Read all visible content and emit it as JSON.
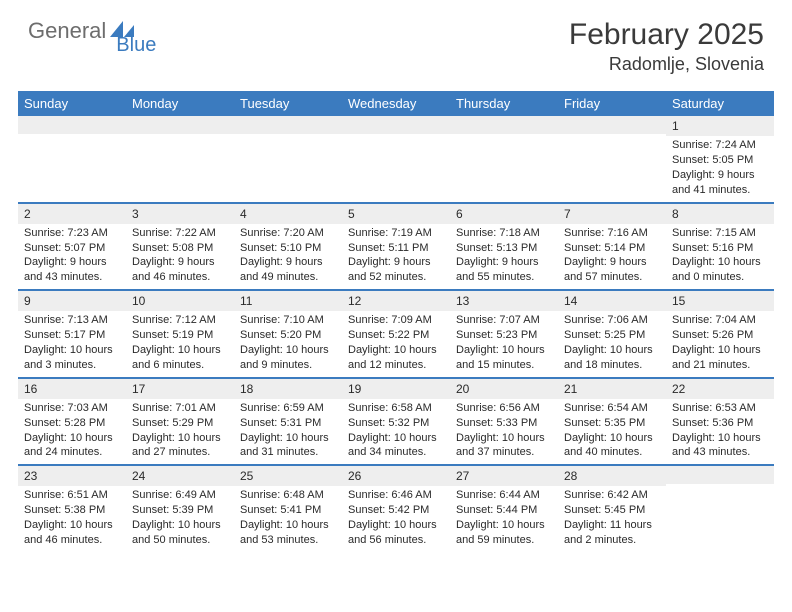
{
  "logo": {
    "part1": "General",
    "part2": "Blue"
  },
  "title": "February 2025",
  "location": "Radomlje, Slovenia",
  "colors": {
    "header_bg": "#3b7bbf",
    "header_text": "#ffffff",
    "num_row_bg": "#eeeeee",
    "text": "#2a2a2a",
    "logo_gray": "#6d6d6d",
    "logo_blue": "#3b7bbf",
    "rule": "#3b7bbf"
  },
  "day_names": [
    "Sunday",
    "Monday",
    "Tuesday",
    "Wednesday",
    "Thursday",
    "Friday",
    "Saturday"
  ],
  "weeks": [
    [
      null,
      null,
      null,
      null,
      null,
      null,
      {
        "n": "1",
        "sr": "7:24 AM",
        "ss": "5:05 PM",
        "dl": "9 hours and 41 minutes."
      }
    ],
    [
      {
        "n": "2",
        "sr": "7:23 AM",
        "ss": "5:07 PM",
        "dl": "9 hours and 43 minutes."
      },
      {
        "n": "3",
        "sr": "7:22 AM",
        "ss": "5:08 PM",
        "dl": "9 hours and 46 minutes."
      },
      {
        "n": "4",
        "sr": "7:20 AM",
        "ss": "5:10 PM",
        "dl": "9 hours and 49 minutes."
      },
      {
        "n": "5",
        "sr": "7:19 AM",
        "ss": "5:11 PM",
        "dl": "9 hours and 52 minutes."
      },
      {
        "n": "6",
        "sr": "7:18 AM",
        "ss": "5:13 PM",
        "dl": "9 hours and 55 minutes."
      },
      {
        "n": "7",
        "sr": "7:16 AM",
        "ss": "5:14 PM",
        "dl": "9 hours and 57 minutes."
      },
      {
        "n": "8",
        "sr": "7:15 AM",
        "ss": "5:16 PM",
        "dl": "10 hours and 0 minutes."
      }
    ],
    [
      {
        "n": "9",
        "sr": "7:13 AM",
        "ss": "5:17 PM",
        "dl": "10 hours and 3 minutes."
      },
      {
        "n": "10",
        "sr": "7:12 AM",
        "ss": "5:19 PM",
        "dl": "10 hours and 6 minutes."
      },
      {
        "n": "11",
        "sr": "7:10 AM",
        "ss": "5:20 PM",
        "dl": "10 hours and 9 minutes."
      },
      {
        "n": "12",
        "sr": "7:09 AM",
        "ss": "5:22 PM",
        "dl": "10 hours and 12 minutes."
      },
      {
        "n": "13",
        "sr": "7:07 AM",
        "ss": "5:23 PM",
        "dl": "10 hours and 15 minutes."
      },
      {
        "n": "14",
        "sr": "7:06 AM",
        "ss": "5:25 PM",
        "dl": "10 hours and 18 minutes."
      },
      {
        "n": "15",
        "sr": "7:04 AM",
        "ss": "5:26 PM",
        "dl": "10 hours and 21 minutes."
      }
    ],
    [
      {
        "n": "16",
        "sr": "7:03 AM",
        "ss": "5:28 PM",
        "dl": "10 hours and 24 minutes."
      },
      {
        "n": "17",
        "sr": "7:01 AM",
        "ss": "5:29 PM",
        "dl": "10 hours and 27 minutes."
      },
      {
        "n": "18",
        "sr": "6:59 AM",
        "ss": "5:31 PM",
        "dl": "10 hours and 31 minutes."
      },
      {
        "n": "19",
        "sr": "6:58 AM",
        "ss": "5:32 PM",
        "dl": "10 hours and 34 minutes."
      },
      {
        "n": "20",
        "sr": "6:56 AM",
        "ss": "5:33 PM",
        "dl": "10 hours and 37 minutes."
      },
      {
        "n": "21",
        "sr": "6:54 AM",
        "ss": "5:35 PM",
        "dl": "10 hours and 40 minutes."
      },
      {
        "n": "22",
        "sr": "6:53 AM",
        "ss": "5:36 PM",
        "dl": "10 hours and 43 minutes."
      }
    ],
    [
      {
        "n": "23",
        "sr": "6:51 AM",
        "ss": "5:38 PM",
        "dl": "10 hours and 46 minutes."
      },
      {
        "n": "24",
        "sr": "6:49 AM",
        "ss": "5:39 PM",
        "dl": "10 hours and 50 minutes."
      },
      {
        "n": "25",
        "sr": "6:48 AM",
        "ss": "5:41 PM",
        "dl": "10 hours and 53 minutes."
      },
      {
        "n": "26",
        "sr": "6:46 AM",
        "ss": "5:42 PM",
        "dl": "10 hours and 56 minutes."
      },
      {
        "n": "27",
        "sr": "6:44 AM",
        "ss": "5:44 PM",
        "dl": "10 hours and 59 minutes."
      },
      {
        "n": "28",
        "sr": "6:42 AM",
        "ss": "5:45 PM",
        "dl": "11 hours and 2 minutes."
      },
      null
    ]
  ],
  "labels": {
    "sunrise": "Sunrise:",
    "sunset": "Sunset:",
    "daylight": "Daylight:"
  }
}
